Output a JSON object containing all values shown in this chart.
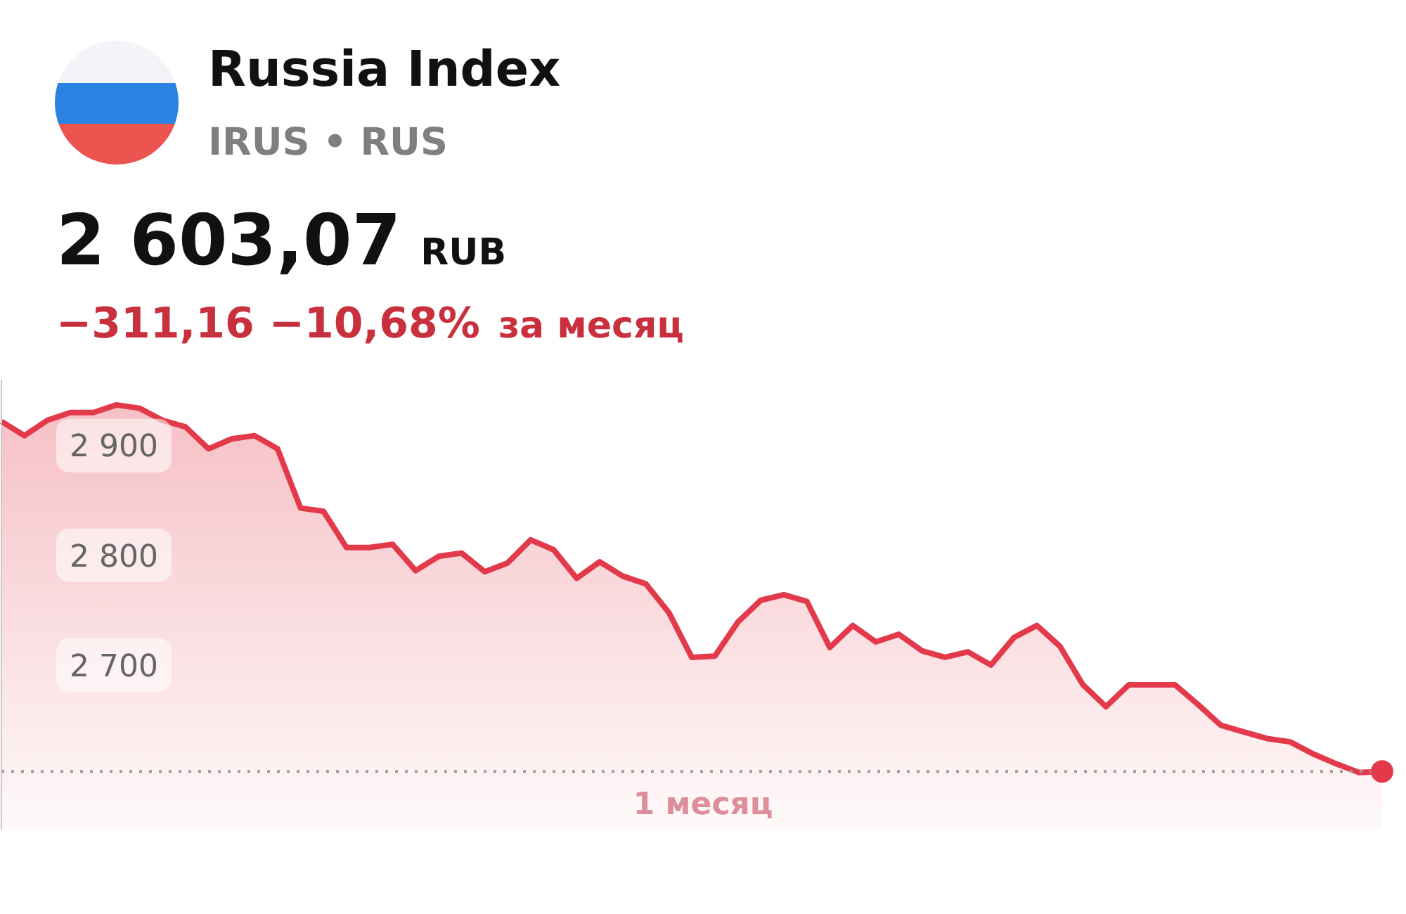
{
  "chart_data": {
    "type": "area",
    "title": "Russia Index",
    "subtitle": "IRUS • RUS",
    "xlabel": "1 месяц",
    "annotations": [
      "2 603,07",
      "RUB",
      "−311,16 −10,68%",
      "за месяц"
    ],
    "categories": [
      null,
      null,
      null,
      null,
      null,
      null,
      null,
      null,
      null,
      null,
      null,
      null,
      null,
      null,
      null,
      null,
      null,
      null,
      null,
      null,
      null,
      null,
      null,
      null,
      null,
      null,
      null,
      null,
      null,
      null,
      null,
      null,
      null,
      null,
      null,
      null,
      null,
      null,
      null,
      null,
      null,
      null,
      null,
      null,
      null,
      null,
      null,
      null,
      null,
      null,
      null,
      null,
      null,
      null,
      null,
      null,
      null,
      null,
      null,
      null,
      null
    ],
    "values": [
      2922,
      2909,
      2923,
      2930,
      2930,
      2937,
      2934,
      2923,
      2917,
      2897,
      2906,
      2909,
      2897,
      2843,
      2840,
      2807,
      2807,
      2810,
      2786,
      2799,
      2802,
      2785,
      2793,
      2814,
      2805,
      2779,
      2794,
      2781,
      2774,
      2748,
      2707,
      2708,
      2739,
      2759,
      2764,
      2758,
      2716,
      2736,
      2721,
      2728,
      2713,
      2707,
      2712,
      2700,
      2725,
      2736,
      2717,
      2682,
      2662,
      2682,
      2682,
      2682,
      2664,
      2645,
      2639,
      2633,
      2630,
      2619,
      2610,
      2602,
      2603.07
    ],
    "color": "#e23a4b",
    "ylim": [
      2550,
      2960
    ],
    "yticks": [
      {
        "value": 2700,
        "label": "2 700"
      },
      {
        "value": 2800,
        "label": "2 800"
      },
      {
        "value": 2900,
        "label": "2 900"
      }
    ],
    "tick_labels": "y",
    "ref_lines": [
      {
        "axis": "y",
        "value": 2603.07,
        "color": "#9a9a9a",
        "line_style": "dotted"
      }
    ]
  }
}
